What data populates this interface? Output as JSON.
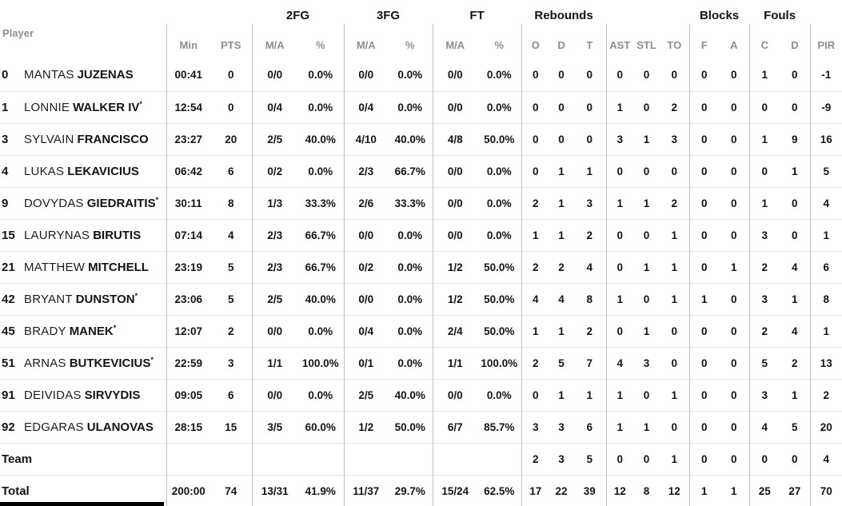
{
  "table": {
    "starter_mark": "*",
    "group_labels": {
      "fg2": "2FG",
      "fg3": "3FG",
      "ft": "FT",
      "rebounds": "Rebounds",
      "blocks": "Blocks",
      "fouls": "Fouls"
    },
    "col_labels": {
      "player": "Player",
      "min": "Min",
      "pts": "PTS",
      "ma": "M/A",
      "pct": "%",
      "reb_o": "O",
      "reb_d": "D",
      "reb_t": "T",
      "ast": "AST",
      "stl": "STL",
      "to": "TO",
      "blk_f": "F",
      "blk_a": "A",
      "foul_c": "C",
      "foul_d": "D",
      "pir": "PIR"
    },
    "rows": [
      {
        "num": "0",
        "first": "MANTAS",
        "last": "JUZENAS",
        "starter": false,
        "min": "00:41",
        "pts": "0",
        "fg2_ma": "0/0",
        "fg2_pct": "0.0%",
        "fg3_ma": "0/0",
        "fg3_pct": "0.0%",
        "ft_ma": "0/0",
        "ft_pct": "0.0%",
        "reb_o": "0",
        "reb_d": "0",
        "reb_t": "0",
        "ast": "0",
        "stl": "0",
        "to": "0",
        "blk_f": "0",
        "blk_a": "0",
        "foul_c": "1",
        "foul_d": "0",
        "pir": "-1"
      },
      {
        "num": "1",
        "first": "LONNIE",
        "last": "WALKER IV",
        "starter": true,
        "min": "12:54",
        "pts": "0",
        "fg2_ma": "0/4",
        "fg2_pct": "0.0%",
        "fg3_ma": "0/4",
        "fg3_pct": "0.0%",
        "ft_ma": "0/0",
        "ft_pct": "0.0%",
        "reb_o": "0",
        "reb_d": "0",
        "reb_t": "0",
        "ast": "1",
        "stl": "0",
        "to": "2",
        "blk_f": "0",
        "blk_a": "0",
        "foul_c": "0",
        "foul_d": "0",
        "pir": "-9"
      },
      {
        "num": "3",
        "first": "SYLVAIN",
        "last": "FRANCISCO",
        "starter": false,
        "min": "23:27",
        "pts": "20",
        "fg2_ma": "2/5",
        "fg2_pct": "40.0%",
        "fg3_ma": "4/10",
        "fg3_pct": "40.0%",
        "ft_ma": "4/8",
        "ft_pct": "50.0%",
        "reb_o": "0",
        "reb_d": "0",
        "reb_t": "0",
        "ast": "3",
        "stl": "1",
        "to": "3",
        "blk_f": "0",
        "blk_a": "0",
        "foul_c": "1",
        "foul_d": "9",
        "pir": "16"
      },
      {
        "num": "4",
        "first": "LUKAS",
        "last": "LEKAVICIUS",
        "starter": false,
        "min": "06:42",
        "pts": "6",
        "fg2_ma": "0/2",
        "fg2_pct": "0.0%",
        "fg3_ma": "2/3",
        "fg3_pct": "66.7%",
        "ft_ma": "0/0",
        "ft_pct": "0.0%",
        "reb_o": "0",
        "reb_d": "1",
        "reb_t": "1",
        "ast": "0",
        "stl": "0",
        "to": "0",
        "blk_f": "0",
        "blk_a": "0",
        "foul_c": "0",
        "foul_d": "1",
        "pir": "5"
      },
      {
        "num": "9",
        "first": "DOVYDAS",
        "last": "GIEDRAITIS",
        "starter": true,
        "min": "30:11",
        "pts": "8",
        "fg2_ma": "1/3",
        "fg2_pct": "33.3%",
        "fg3_ma": "2/6",
        "fg3_pct": "33.3%",
        "ft_ma": "0/0",
        "ft_pct": "0.0%",
        "reb_o": "2",
        "reb_d": "1",
        "reb_t": "3",
        "ast": "1",
        "stl": "1",
        "to": "2",
        "blk_f": "0",
        "blk_a": "0",
        "foul_c": "1",
        "foul_d": "0",
        "pir": "4"
      },
      {
        "num": "15",
        "first": "LAURYNAS",
        "last": "BIRUTIS",
        "starter": false,
        "min": "07:14",
        "pts": "4",
        "fg2_ma": "2/3",
        "fg2_pct": "66.7%",
        "fg3_ma": "0/0",
        "fg3_pct": "0.0%",
        "ft_ma": "0/0",
        "ft_pct": "0.0%",
        "reb_o": "1",
        "reb_d": "1",
        "reb_t": "2",
        "ast": "0",
        "stl": "0",
        "to": "1",
        "blk_f": "0",
        "blk_a": "0",
        "foul_c": "3",
        "foul_d": "0",
        "pir": "1"
      },
      {
        "num": "21",
        "first": "MATTHEW",
        "last": "MITCHELL",
        "starter": false,
        "min": "23:19",
        "pts": "5",
        "fg2_ma": "2/3",
        "fg2_pct": "66.7%",
        "fg3_ma": "0/2",
        "fg3_pct": "0.0%",
        "ft_ma": "1/2",
        "ft_pct": "50.0%",
        "reb_o": "2",
        "reb_d": "2",
        "reb_t": "4",
        "ast": "0",
        "stl": "1",
        "to": "1",
        "blk_f": "0",
        "blk_a": "1",
        "foul_c": "2",
        "foul_d": "4",
        "pir": "6"
      },
      {
        "num": "42",
        "first": "BRYANT",
        "last": "DUNSTON",
        "starter": true,
        "min": "23:06",
        "pts": "5",
        "fg2_ma": "2/5",
        "fg2_pct": "40.0%",
        "fg3_ma": "0/0",
        "fg3_pct": "0.0%",
        "ft_ma": "1/2",
        "ft_pct": "50.0%",
        "reb_o": "4",
        "reb_d": "4",
        "reb_t": "8",
        "ast": "1",
        "stl": "0",
        "to": "1",
        "blk_f": "1",
        "blk_a": "0",
        "foul_c": "3",
        "foul_d": "1",
        "pir": "8"
      },
      {
        "num": "45",
        "first": "BRADY",
        "last": "MANEK",
        "starter": true,
        "min": "12:07",
        "pts": "2",
        "fg2_ma": "0/0",
        "fg2_pct": "0.0%",
        "fg3_ma": "0/4",
        "fg3_pct": "0.0%",
        "ft_ma": "2/4",
        "ft_pct": "50.0%",
        "reb_o": "1",
        "reb_d": "1",
        "reb_t": "2",
        "ast": "0",
        "stl": "1",
        "to": "0",
        "blk_f": "0",
        "blk_a": "0",
        "foul_c": "2",
        "foul_d": "4",
        "pir": "1"
      },
      {
        "num": "51",
        "first": "ARNAS",
        "last": "BUTKEVICIUS",
        "starter": true,
        "min": "22:59",
        "pts": "3",
        "fg2_ma": "1/1",
        "fg2_pct": "100.0%",
        "fg3_ma": "0/1",
        "fg3_pct": "0.0%",
        "ft_ma": "1/1",
        "ft_pct": "100.0%",
        "reb_o": "2",
        "reb_d": "5",
        "reb_t": "7",
        "ast": "4",
        "stl": "3",
        "to": "0",
        "blk_f": "0",
        "blk_a": "0",
        "foul_c": "5",
        "foul_d": "2",
        "pir": "13"
      },
      {
        "num": "91",
        "first": "DEIVIDAS",
        "last": "SIRVYDIS",
        "starter": false,
        "min": "09:05",
        "pts": "6",
        "fg2_ma": "0/0",
        "fg2_pct": "0.0%",
        "fg3_ma": "2/5",
        "fg3_pct": "40.0%",
        "ft_ma": "0/0",
        "ft_pct": "0.0%",
        "reb_o": "0",
        "reb_d": "1",
        "reb_t": "1",
        "ast": "1",
        "stl": "0",
        "to": "1",
        "blk_f": "0",
        "blk_a": "0",
        "foul_c": "3",
        "foul_d": "1",
        "pir": "2"
      },
      {
        "num": "92",
        "first": "EDGARAS",
        "last": "ULANOVAS",
        "starter": false,
        "min": "28:15",
        "pts": "15",
        "fg2_ma": "3/5",
        "fg2_pct": "60.0%",
        "fg3_ma": "1/2",
        "fg3_pct": "50.0%",
        "ft_ma": "6/7",
        "ft_pct": "85.7%",
        "reb_o": "3",
        "reb_d": "3",
        "reb_t": "6",
        "ast": "1",
        "stl": "1",
        "to": "0",
        "blk_f": "0",
        "blk_a": "0",
        "foul_c": "4",
        "foul_d": "5",
        "pir": "20"
      },
      {
        "label": "Team",
        "reb_o": "2",
        "reb_d": "3",
        "reb_t": "5",
        "ast": "0",
        "stl": "0",
        "to": "1",
        "blk_f": "0",
        "blk_a": "0",
        "foul_c": "0",
        "foul_d": "0",
        "pir": "4"
      },
      {
        "label": "Total",
        "min": "200:00",
        "pts": "74",
        "fg2_ma": "13/31",
        "fg2_pct": "41.9%",
        "fg3_ma": "11/37",
        "fg3_pct": "29.7%",
        "ft_ma": "15/24",
        "ft_pct": "62.5%",
        "reb_o": "17",
        "reb_d": "22",
        "reb_t": "39",
        "ast": "12",
        "stl": "8",
        "to": "12",
        "blk_f": "1",
        "blk_a": "1",
        "foul_c": "25",
        "foul_d": "27",
        "pir": "70"
      }
    ]
  }
}
